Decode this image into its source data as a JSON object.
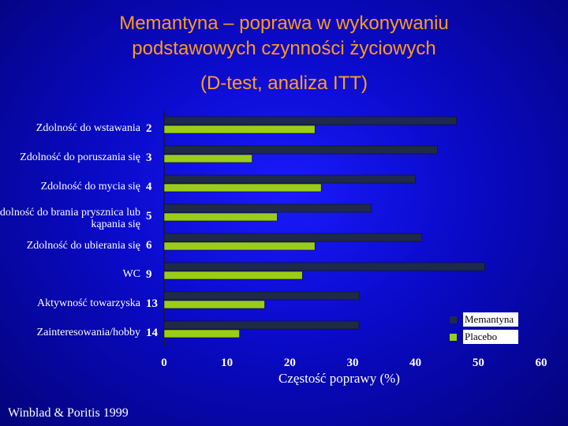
{
  "title_line1": "Memantyna – poprawa w wykonywaniu",
  "title_line2": "podstawowych czynności życiowych",
  "subtitle": "(D-test, analiza ITT)",
  "source": "Winblad & Poritis 1999",
  "colors": {
    "memantyna": "#1e2a4a",
    "placebo": "#9acd1a",
    "axis": "#1a1a1a"
  },
  "chart_data": {
    "type": "bar",
    "orientation": "horizontal",
    "categories": [
      {
        "label": "Zdolność do wstawania",
        "num": "2"
      },
      {
        "label": "Zdolność do poruszania się",
        "num": "3"
      },
      {
        "label": "Zdolność do mycia się",
        "num": "4"
      },
      {
        "label": "Zdolność do brania prysznica lub kąpania się",
        "num": "5"
      },
      {
        "label": "Zdolność do ubierania się",
        "num": "6"
      },
      {
        "label": "WC",
        "num": "9"
      },
      {
        "label": "Aktywność towarzyska",
        "num": "13"
      },
      {
        "label": "Zainteresowania/hobby",
        "num": "14"
      }
    ],
    "series": [
      {
        "name": "Memantyna",
        "values": [
          46.5,
          43.5,
          40,
          33,
          41,
          51,
          31,
          31
        ]
      },
      {
        "name": "Placebo",
        "values": [
          24,
          14,
          25,
          18,
          24,
          22,
          16,
          12
        ]
      }
    ],
    "legend_labels": [
      "Memantyna",
      "Placebo"
    ],
    "xlabel": "Częstość poprawy (%)",
    "xlim": [
      0,
      60
    ],
    "xticks": [
      "0",
      "10",
      "20",
      "30",
      "40",
      "50",
      "60"
    ],
    "legend_position": "bottom-right",
    "grid": false
  }
}
